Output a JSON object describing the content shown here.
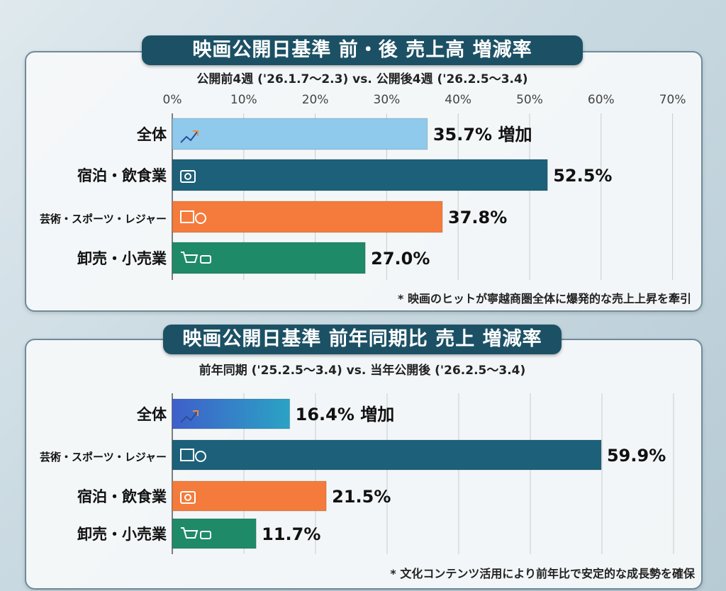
{
  "colors": {
    "title_bg": "#1c5165",
    "overall_light": "#8fc9ec",
    "teal": "#1d6079",
    "orange": "#f47b3b",
    "green": "#1f8a68",
    "overall_gradient": [
      "#3f5fcb",
      "#2aa3c4"
    ]
  },
  "chart_data": [
    {
      "type": "bar",
      "orientation": "horizontal",
      "title": "映画公開日基準 前・後 売上高 増減率",
      "subtitle": "公開前4週 ('26.1.7～2.3) vs. 公開後4週 ('26.2.5～3.4)",
      "xlim": [
        0,
        70
      ],
      "xticks": [
        "0%",
        "10%",
        "20%",
        "30%",
        "40%",
        "50%",
        "60%",
        "70%"
      ],
      "grid": true,
      "categories": [
        "全体",
        "宿泊・飲食業",
        "芸術・スポーツ・レジャー",
        "卸売・小売業"
      ],
      "values": [
        35.7,
        52.5,
        37.8,
        27.0
      ],
      "data_labels": [
        "35.7% 増加",
        "52.5%",
        "37.8%",
        "27.0%"
      ],
      "bar_colors": [
        "#8fc9ec",
        "#1d6079",
        "#f47b3b",
        "#1f8a68"
      ],
      "icons": [
        "trend-up-icon",
        "hotel-icon",
        "theater-sports-icon",
        "shopping-cart-icon"
      ],
      "footnote": "* 映画のヒットが寧越商圏全体に爆発的な売上上昇を牽引"
    },
    {
      "type": "bar",
      "orientation": "horizontal",
      "title": "映画公開日基準 前年同期比 売上 増減率",
      "subtitle": "前年同期 ('25.2.5～3.4) vs. 当年公開後 ('26.2.5～3.4)",
      "xlim": [
        0,
        70
      ],
      "grid": true,
      "categories": [
        "全体",
        "芸術・スポーツ・レジャー",
        "宿泊・飲食業",
        "卸売・小売業"
      ],
      "values": [
        16.4,
        59.9,
        21.5,
        11.7
      ],
      "data_labels": [
        "16.4% 増加",
        "59.9%",
        "21.5%",
        "11.7%"
      ],
      "bar_colors": [
        "gradient",
        "#1d6079",
        "#f47b3b",
        "#1f8a68"
      ],
      "icons": [
        "trend-up-icon",
        "theater-sports-icon",
        "hotel-icon",
        "shopping-cart-icon"
      ],
      "footnote": "* 文化コンテンツ活用により前年比で安定的な成長勢を確保"
    }
  ]
}
